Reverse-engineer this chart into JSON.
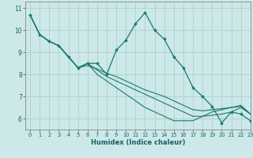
{
  "xlabel": "Humidex (Indice chaleur)",
  "background_color": "#cce8e8",
  "grid_color": "#b0d0d0",
  "line_color": "#1a7a6e",
  "xlim": [
    -0.5,
    23
  ],
  "ylim": [
    5.5,
    11.3
  ],
  "yticks": [
    6,
    7,
    8,
    9,
    10,
    11
  ],
  "xticks": [
    0,
    1,
    2,
    3,
    4,
    5,
    6,
    7,
    8,
    9,
    10,
    11,
    12,
    13,
    14,
    15,
    16,
    17,
    18,
    19,
    20,
    21,
    22,
    23
  ],
  "series": [
    [
      10.7,
      9.8,
      9.5,
      9.3,
      8.8,
      8.3,
      8.5,
      8.5,
      8.0,
      9.1,
      9.55,
      10.3,
      10.8,
      10.0,
      9.6,
      8.8,
      8.3,
      7.4,
      7.0,
      6.55,
      5.8,
      6.3,
      6.2,
      5.9
    ],
    [
      10.7,
      9.8,
      9.5,
      9.3,
      8.8,
      8.3,
      8.5,
      8.0,
      7.7,
      7.4,
      7.1,
      6.8,
      6.5,
      6.3,
      6.1,
      5.9,
      5.9,
      5.9,
      6.1,
      6.3,
      6.4,
      6.5,
      6.6,
      6.2
    ],
    [
      10.7,
      9.8,
      9.5,
      9.3,
      8.8,
      8.3,
      8.5,
      8.2,
      7.9,
      7.7,
      7.5,
      7.3,
      7.1,
      6.9,
      6.7,
      6.5,
      6.3,
      6.1,
      6.1,
      6.15,
      6.2,
      6.3,
      6.5,
      6.2
    ],
    [
      10.7,
      9.8,
      9.5,
      9.3,
      8.8,
      8.3,
      8.4,
      8.25,
      8.05,
      7.9,
      7.7,
      7.5,
      7.3,
      7.15,
      7.0,
      6.8,
      6.6,
      6.4,
      6.35,
      6.4,
      6.45,
      6.5,
      6.55,
      6.2
    ]
  ]
}
